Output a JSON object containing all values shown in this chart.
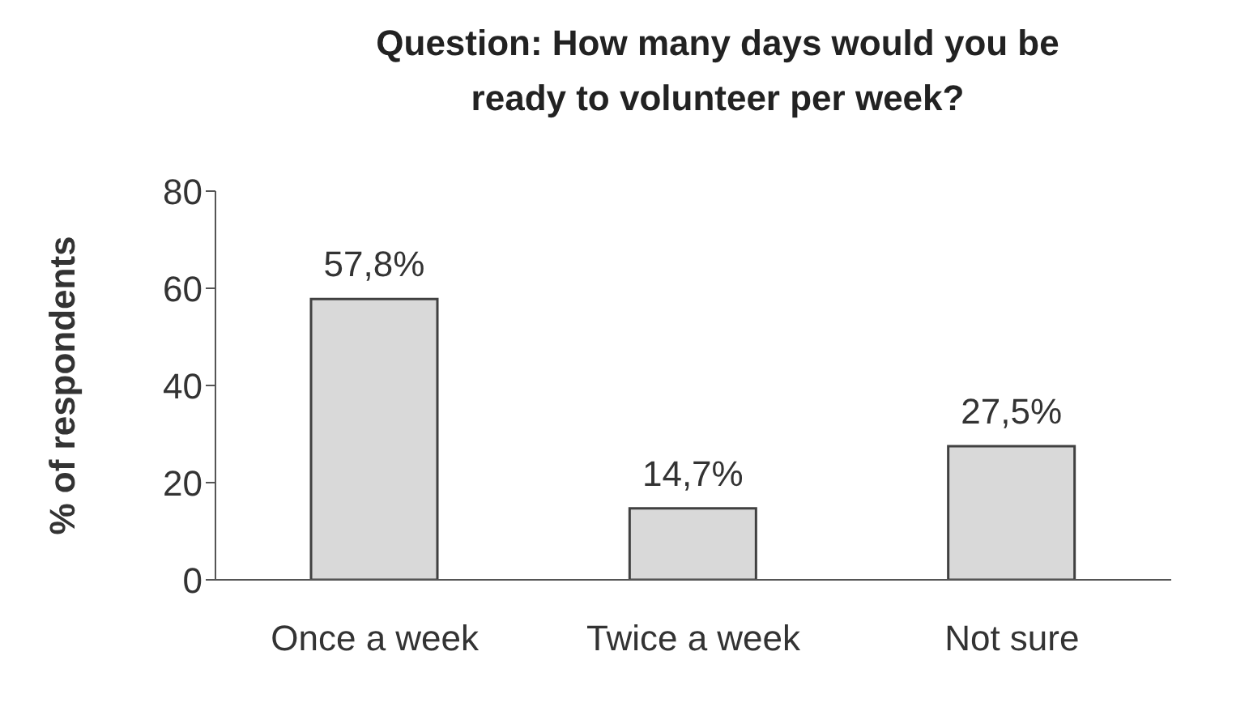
{
  "chart_data": {
    "type": "bar",
    "title": "Question: How many days would you be ready to volunteer per week?",
    "ylabel": "% of respondents",
    "categories": [
      "Once a week",
      "Twice a week",
      "Not sure"
    ],
    "values": [
      57.8,
      14.7,
      27.5
    ],
    "value_labels": [
      "57,8%",
      "14,7%",
      "27,5%"
    ],
    "color": "#d9d9d9",
    "ylim": [
      0,
      80
    ],
    "yticks": [
      0,
      20,
      40,
      60,
      80
    ],
    "grid": false,
    "legend": false
  }
}
